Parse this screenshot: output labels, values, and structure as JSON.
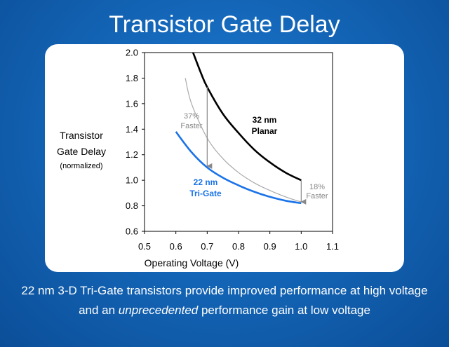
{
  "slide": {
    "title": "Transistor Gate Delay",
    "caption_line1": "22 nm 3-D Tri-Gate transistors provide improved performance at high voltage",
    "caption_line2_pre": "and an ",
    "caption_line2_em": "unprecedented",
    "caption_line2_post": " performance gain at low voltage"
  },
  "chart_data": {
    "type": "line",
    "title": "",
    "xlabel": "Operating Voltage (V)",
    "ylabel_line1": "Transistor",
    "ylabel_line2": "Gate Delay",
    "ylabel_line3": "(normalized)",
    "xlim": [
      0.5,
      1.1
    ],
    "ylim": [
      0.6,
      2.0
    ],
    "x_ticks": [
      "0.5",
      "0.6",
      "0.7",
      "0.8",
      "0.9",
      "1.0",
      "1.1"
    ],
    "y_ticks": [
      "0.6",
      "0.8",
      "1.0",
      "1.2",
      "1.4",
      "1.6",
      "1.8",
      "2.0"
    ],
    "grid": false,
    "series": [
      {
        "name_line1": "32 nm",
        "name_line2": "Planar",
        "color": "#000000",
        "x": [
          0.655,
          0.68,
          0.7,
          0.75,
          0.8,
          0.85,
          0.9,
          0.95,
          1.0
        ],
        "y": [
          2.0,
          1.84,
          1.73,
          1.52,
          1.37,
          1.24,
          1.14,
          1.06,
          1.0
        ]
      },
      {
        "name_line1": "22 nm",
        "name_line2": "Tri-Gate",
        "color": "#1a73e8",
        "x": [
          0.6,
          0.65,
          0.7,
          0.75,
          0.8,
          0.85,
          0.9,
          0.95,
          1.0
        ],
        "y": [
          1.38,
          1.22,
          1.1,
          1.02,
          0.96,
          0.91,
          0.87,
          0.84,
          0.82
        ]
      }
    ],
    "reference_curve": {
      "color": "#aaaaaa",
      "x": [
        0.63,
        0.65,
        0.7,
        0.75,
        0.8,
        0.85,
        0.9,
        0.95,
        1.0
      ],
      "y": [
        1.8,
        1.6,
        1.33,
        1.17,
        1.06,
        0.98,
        0.92,
        0.87,
        0.83
      ]
    },
    "annotations": [
      {
        "line1": "37%",
        "line2": "Faster",
        "x": 0.7,
        "y_from": 1.73,
        "y_to": 1.1
      },
      {
        "line1": "18%",
        "line2": "Faster",
        "x": 1.0,
        "y_from": 1.0,
        "y_to": 0.82
      }
    ]
  }
}
